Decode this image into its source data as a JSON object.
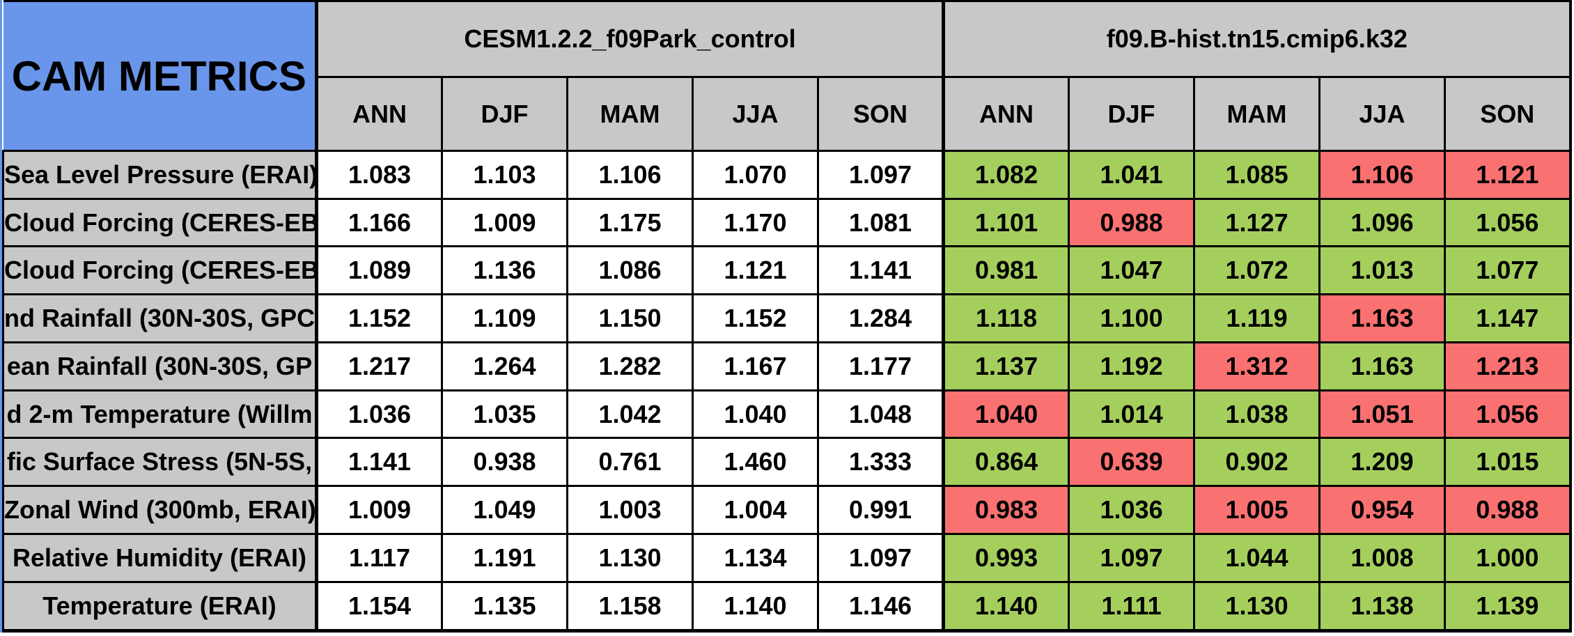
{
  "chart_data": {
    "type": "table",
    "title": "CAM METRICS",
    "column_groups": [
      {
        "name": "CESM1.2.2_f09Park_control",
        "cell_style": "white"
      },
      {
        "name": "f09.B-hist.tn15.cmip6.k32",
        "cell_style": "green-red-coded"
      }
    ],
    "seasons": [
      "ANN",
      "DJF",
      "MAM",
      "JJA",
      "SON"
    ],
    "rows": [
      {
        "label": "Sea Level Pressure (ERAI)",
        "control": [
          "1.083",
          "1.103",
          "1.106",
          "1.070",
          "1.097"
        ],
        "experiment": [
          "1.082",
          "1.041",
          "1.085",
          "1.106",
          "1.121"
        ],
        "experiment_colors": [
          "green",
          "green",
          "green",
          "red",
          "red"
        ]
      },
      {
        "label": "Cloud Forcing (CERES-EB",
        "control": [
          "1.166",
          "1.009",
          "1.175",
          "1.170",
          "1.081"
        ],
        "experiment": [
          "1.101",
          "0.988",
          "1.127",
          "1.096",
          "1.056"
        ],
        "experiment_colors": [
          "green",
          "red",
          "green",
          "green",
          "green"
        ]
      },
      {
        "label": "Cloud Forcing (CERES-EB",
        "control": [
          "1.089",
          "1.136",
          "1.086",
          "1.121",
          "1.141"
        ],
        "experiment": [
          "0.981",
          "1.047",
          "1.072",
          "1.013",
          "1.077"
        ],
        "experiment_colors": [
          "green",
          "green",
          "green",
          "green",
          "green"
        ]
      },
      {
        "label": "nd Rainfall (30N-30S, GPC",
        "control": [
          "1.152",
          "1.109",
          "1.150",
          "1.152",
          "1.284"
        ],
        "experiment": [
          "1.118",
          "1.100",
          "1.119",
          "1.163",
          "1.147"
        ],
        "experiment_colors": [
          "green",
          "green",
          "green",
          "red",
          "green"
        ]
      },
      {
        "label": "ean Rainfall (30N-30S, GP",
        "control": [
          "1.217",
          "1.264",
          "1.282",
          "1.167",
          "1.177"
        ],
        "experiment": [
          "1.137",
          "1.192",
          "1.312",
          "1.163",
          "1.213"
        ],
        "experiment_colors": [
          "green",
          "green",
          "red",
          "green",
          "red"
        ]
      },
      {
        "label": "d 2-m Temperature (Willm",
        "control": [
          "1.036",
          "1.035",
          "1.042",
          "1.040",
          "1.048"
        ],
        "experiment": [
          "1.040",
          "1.014",
          "1.038",
          "1.051",
          "1.056"
        ],
        "experiment_colors": [
          "red",
          "green",
          "green",
          "red",
          "red"
        ]
      },
      {
        "label": "fic Surface Stress (5N-5S,",
        "control": [
          "1.141",
          "0.938",
          "0.761",
          "1.460",
          "1.333"
        ],
        "experiment": [
          "0.864",
          "0.639",
          "0.902",
          "1.209",
          "1.015"
        ],
        "experiment_colors": [
          "green",
          "red",
          "green",
          "green",
          "green"
        ]
      },
      {
        "label": "Zonal Wind (300mb, ERAI)",
        "control": [
          "1.009",
          "1.049",
          "1.003",
          "1.004",
          "0.991"
        ],
        "experiment": [
          "0.983",
          "1.036",
          "1.005",
          "0.954",
          "0.988"
        ],
        "experiment_colors": [
          "red",
          "green",
          "red",
          "red",
          "red"
        ]
      },
      {
        "label": "Relative Humidity (ERAI)",
        "control": [
          "1.117",
          "1.191",
          "1.130",
          "1.134",
          "1.097"
        ],
        "experiment": [
          "0.993",
          "1.097",
          "1.044",
          "1.008",
          "1.000"
        ],
        "experiment_colors": [
          "green",
          "green",
          "green",
          "green",
          "green"
        ]
      },
      {
        "label": "Temperature (ERAI)",
        "control": [
          "1.154",
          "1.135",
          "1.158",
          "1.140",
          "1.146"
        ],
        "experiment": [
          "1.140",
          "1.111",
          "1.130",
          "1.138",
          "1.139"
        ],
        "experiment_colors": [
          "green",
          "green",
          "green",
          "green",
          "green"
        ]
      }
    ],
    "colors": {
      "title_cell_blue": "#6996EB",
      "header_gray": "#C8C8C8",
      "control_cell_white": "#FFFFFF",
      "better_green": "#A5CF5D",
      "worse_red": "#FA7171"
    }
  }
}
